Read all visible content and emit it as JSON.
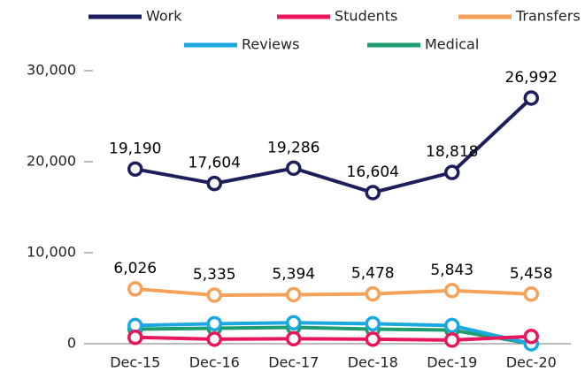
{
  "chart_data": {
    "type": "line",
    "categories": [
      "Dec-15",
      "Dec-16",
      "Dec-17",
      "Dec-18",
      "Dec-19",
      "Dec-20"
    ],
    "series": [
      {
        "name": "Work",
        "color": "#1c1f5c",
        "values": [
          19190,
          17604,
          19286,
          16604,
          18818,
          26992
        ],
        "value_labels": [
          "19,190",
          "17,604",
          "19,286",
          "16,604",
          "18,818",
          "26,992"
        ]
      },
      {
        "name": "Students",
        "color": "#e8175d",
        "values": [
          700,
          500,
          550,
          500,
          400,
          800
        ]
      },
      {
        "name": "Transfers",
        "color": "#f4a259",
        "values": [
          6026,
          5335,
          5394,
          5478,
          5843,
          5458
        ],
        "value_labels": [
          "6,026",
          "5,335",
          "5,394",
          "5,478",
          "5,843",
          "5,458"
        ]
      },
      {
        "name": "Reviews",
        "color": "#1ba8e0",
        "values": [
          2000,
          2200,
          2300,
          2200,
          2000,
          0
        ]
      },
      {
        "name": "Medical",
        "color": "#1e9e6e",
        "values": [
          1600,
          1700,
          1800,
          1600,
          1500,
          0
        ]
      }
    ],
    "ylim": [
      0,
      30000
    ],
    "yticks": [
      0,
      {
        "value": 10000,
        "label": "10,000"
      },
      {
        "value": 20000,
        "label": "20,000"
      },
      {
        "value": 30000,
        "label": "30,000"
      }
    ],
    "legend": "top"
  }
}
